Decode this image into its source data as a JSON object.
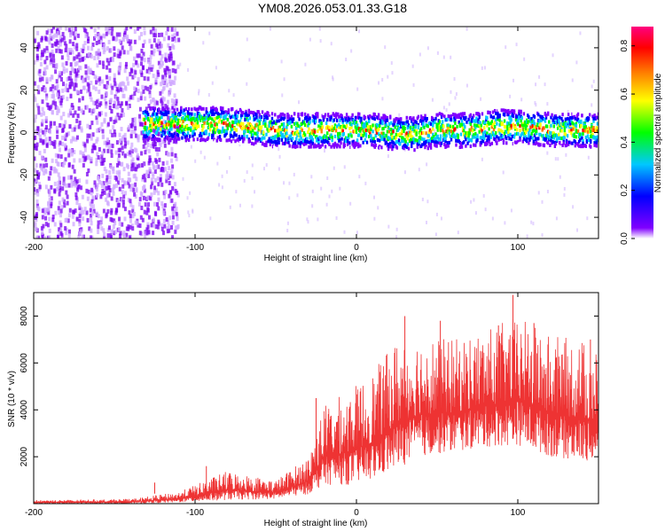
{
  "title": "YM08.2026.053.01.33.G18",
  "chart_data": [
    {
      "type": "heatmap",
      "name": "spectrogram",
      "xlabel": "Height of straight line (km)",
      "ylabel": "Frequency (Hz)",
      "xlim": [
        -200,
        150
      ],
      "ylim": [
        -50,
        50
      ],
      "xticks": [
        -200,
        -100,
        0,
        100
      ],
      "yticks": [
        -40,
        -20,
        0,
        20,
        40
      ],
      "band_center_hz": [
        {
          "x": -130,
          "y": 4
        },
        {
          "x": -110,
          "y": 4
        },
        {
          "x": -90,
          "y": 4
        },
        {
          "x": -70,
          "y": 3
        },
        {
          "x": -50,
          "y": 1
        },
        {
          "x": -30,
          "y": 1
        },
        {
          "x": -10,
          "y": 1
        },
        {
          "x": 10,
          "y": 1
        },
        {
          "x": 30,
          "y": -1
        },
        {
          "x": 50,
          "y": 1
        },
        {
          "x": 70,
          "y": 1
        },
        {
          "x": 90,
          "y": 3
        },
        {
          "x": 110,
          "y": 2
        },
        {
          "x": 130,
          "y": 1
        },
        {
          "x": 148,
          "y": 1
        }
      ],
      "colorbar": {
        "label": "Normalized spectral amplitude",
        "range": [
          0.0,
          0.88
        ],
        "ticks": [
          "0.0",
          "0.2",
          "0.4",
          "0.6",
          "0.8"
        ],
        "colors": [
          "#ffffff",
          "#8000ff",
          "#0000ff",
          "#00c8ff",
          "#00ff00",
          "#ffff00",
          "#ff8000",
          "#ff0000",
          "#ff0080"
        ]
      }
    },
    {
      "type": "line",
      "name": "snr",
      "xlabel": "Height of straight line (km)",
      "ylabel": "SNR (10 * v/v)",
      "xlim": [
        -200,
        150
      ],
      "ylim": [
        0,
        9000
      ],
      "xticks": [
        -200,
        -100,
        0,
        100
      ],
      "yticks": [
        2000,
        4000,
        6000,
        8000
      ],
      "color": "#ee3333",
      "envelope": [
        {
          "x": -200,
          "low": 0,
          "high": 150
        },
        {
          "x": -140,
          "low": 0,
          "high": 200
        },
        {
          "x": -110,
          "low": 50,
          "high": 500
        },
        {
          "x": -80,
          "low": 150,
          "high": 1400
        },
        {
          "x": -50,
          "low": 200,
          "high": 1000
        },
        {
          "x": -30,
          "low": 400,
          "high": 2000
        },
        {
          "x": -20,
          "low": 800,
          "high": 4200
        },
        {
          "x": -5,
          "low": 800,
          "high": 4800
        },
        {
          "x": 10,
          "low": 1000,
          "high": 5600
        },
        {
          "x": 25,
          "low": 1500,
          "high": 7000
        },
        {
          "x": 40,
          "low": 2000,
          "high": 7200
        },
        {
          "x": 60,
          "low": 2200,
          "high": 7000
        },
        {
          "x": 80,
          "low": 2400,
          "high": 7400
        },
        {
          "x": 100,
          "low": 2500,
          "high": 8000
        },
        {
          "x": 120,
          "low": 2000,
          "high": 7200
        },
        {
          "x": 140,
          "low": 1800,
          "high": 7000
        },
        {
          "x": 150,
          "low": 1800,
          "high": 6500
        }
      ],
      "peaks": [
        {
          "x": -125,
          "y": 900
        },
        {
          "x": -93,
          "y": 1600
        },
        {
          "x": -25,
          "y": 4500
        },
        {
          "x": 30,
          "y": 8000
        },
        {
          "x": 52,
          "y": 7800
        },
        {
          "x": 88,
          "y": 7600
        },
        {
          "x": 97,
          "y": 8900
        },
        {
          "x": 110,
          "y": 7700
        },
        {
          "x": 145,
          "y": 7000
        }
      ]
    }
  ]
}
